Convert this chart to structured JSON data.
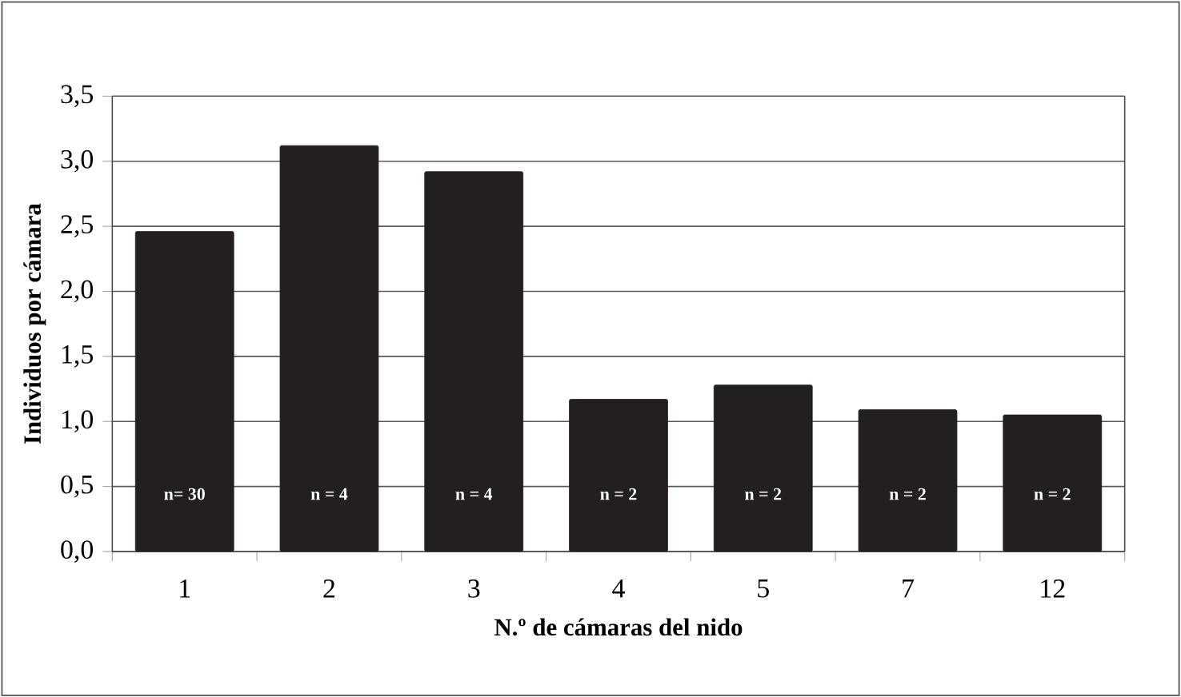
{
  "chart_data": {
    "type": "bar",
    "categories": [
      "1",
      "2",
      "3",
      "4",
      "5",
      "7",
      "12"
    ],
    "values": [
      2.46,
      3.12,
      2.92,
      1.17,
      1.28,
      1.09,
      1.05
    ],
    "color": "#231f20",
    "ylim": [
      0,
      3.5
    ],
    "yticks": [
      {
        "value": 0,
        "label": "0,0"
      },
      {
        "value": 0.5,
        "label": "0,5"
      },
      {
        "value": 1,
        "label": "1,0"
      },
      {
        "value": 1.5,
        "label": "1,5"
      },
      {
        "value": 2,
        "label": "2,0"
      },
      {
        "value": 2.5,
        "label": "2,5"
      },
      {
        "value": 3,
        "label": "3,0"
      },
      {
        "value": 3.5,
        "label": "3,5"
      }
    ],
    "grid": "y",
    "xlabel": "N.º de cámaras del nido",
    "ylabel": "Individuos por cámara",
    "annotations": [
      "n= 30",
      "n = 4",
      "n = 4",
      "n = 2",
      "n = 2",
      "n = 2",
      "n = 2"
    ]
  }
}
